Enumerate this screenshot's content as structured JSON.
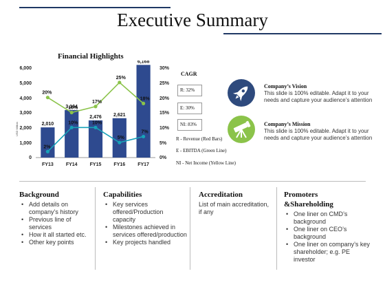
{
  "page": {
    "title": "Executive Summary"
  },
  "chart": {
    "title": "Financial Highlights",
    "left_axis_ticks": [
      "6,000",
      "5,000",
      "4,000",
      "3,000",
      "2,000",
      "1,000",
      "0"
    ],
    "right_axis_ticks": [
      "30%",
      "25%",
      "20%",
      "15%",
      "10%",
      "5%",
      "0%"
    ],
    "y_axis_label": "USD Million"
  },
  "chart_data": {
    "type": "bar",
    "categories": [
      "FY13",
      "FY14",
      "FY15",
      "FY16",
      "FY17"
    ],
    "series": [
      {
        "name": "Revenue",
        "kind": "bar",
        "axis": "left",
        "values": [
          2010,
          3164,
          2476,
          2621,
          6168
        ],
        "labels": [
          "2,010",
          "3,164",
          "2,476",
          "2,621",
          "6,168"
        ],
        "color": "#2e4a8f"
      },
      {
        "name": "EBITDA",
        "kind": "line",
        "axis": "right",
        "values": [
          20,
          15,
          17,
          25,
          18
        ],
        "labels": [
          "20%",
          "15%",
          "17%",
          "25%",
          "18%"
        ],
        "color": "#8bc34a"
      },
      {
        "name": "Net Income",
        "kind": "line",
        "axis": "right",
        "values": [
          2,
          10,
          10,
          5,
          7
        ],
        "labels": [
          "2%",
          "10%",
          "10%",
          "5%",
          "7%"
        ],
        "color": "#17a2b8"
      }
    ],
    "ylim_left": [
      0,
      6000
    ],
    "ylim_right": [
      0,
      30
    ]
  },
  "cagr": {
    "title": "CAGR",
    "items": [
      "R: 32%",
      "E: 30%",
      "NI: 83%"
    ],
    "legend": [
      "R - Revenue (Red Bars)",
      "E - EBITDA (Green Line)",
      "NI - Net Income (Yellow Line)"
    ]
  },
  "vision": {
    "title": "Company’s Vision",
    "body": "This slide is 100% editable. Adapt it to your needs and capture your audience’s attention",
    "icon": "rocket-icon",
    "color": "#2e4a7d"
  },
  "mission": {
    "title": "Company’s Mission",
    "body": "This slide is 100% editable. Adapt it to your needs and capture your audience’s attention",
    "icon": "telescope-icon",
    "color": "#8bc34a"
  },
  "columns": {
    "background": {
      "title": "Background",
      "items": [
        "Add details on company’s history",
        "Previous line of services",
        "How it all started etc.",
        "Other key points"
      ]
    },
    "capabilities": {
      "title": "Capabilities",
      "items": [
        "Key services offered/Production capacity",
        "Milestones achieved in services offered/production",
        "Key projects handled"
      ]
    },
    "accreditation": {
      "title": "Accreditation",
      "text": "List of main accreditation, if any"
    },
    "promoters": {
      "title_line1": "Promoters",
      "title_line2": "&Shareholding",
      "items": [
        "One liner on CMD’s background",
        "One liner on CEO’s background",
        "One liner on company’s key shareholder; e.g. PE investor"
      ]
    }
  }
}
